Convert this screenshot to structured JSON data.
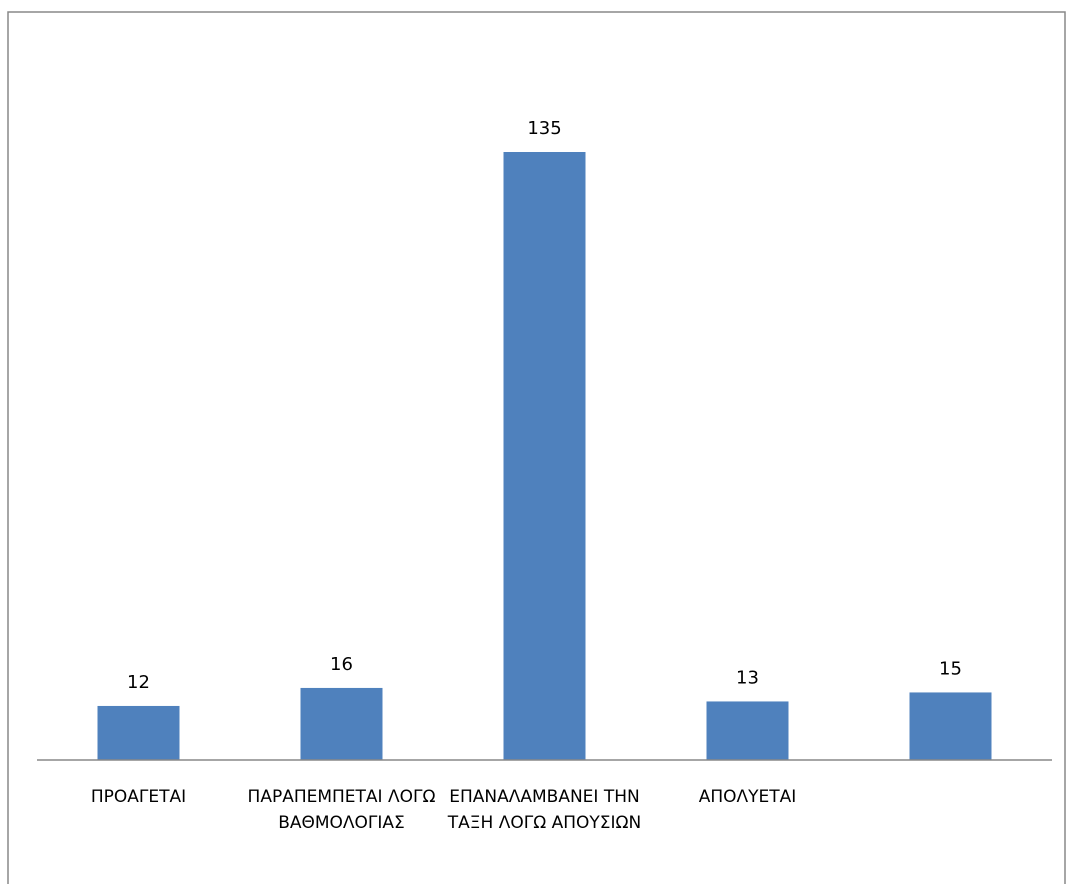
{
  "chart_data": {
    "type": "bar",
    "categories": [
      "ΠΡΟΑΓΕΤΑΙ",
      "ΠΑΡΑΠΕΜΠΕΤΑΙ ΛΟΓΩ ΒΑΘΜΟΛΟΓΙΑΣ",
      "ΕΠΑΝΑΛΑΜΒΑΝΕΙ ΤΗΝ ΤΑΞΗ ΛΟΓΩ ΑΠΟΥΣΙΩΝ",
      "ΑΠΟΛΥΕΤΑΙ",
      null
    ],
    "values": [
      12,
      16,
      135,
      13,
      15
    ],
    "color": "#4f81bd"
  }
}
